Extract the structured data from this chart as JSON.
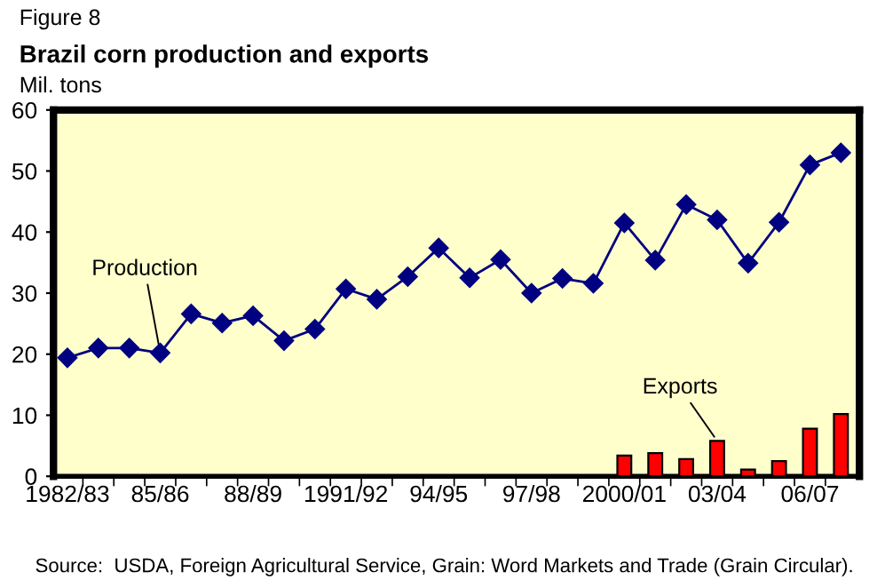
{
  "chart_data": {
    "type": "line",
    "title": "Brazil corn production and exports",
    "ylabel": "Mil. tons",
    "categories": [
      "1982/83",
      null,
      null,
      "85/86",
      null,
      null,
      "88/89",
      null,
      null,
      "1991/92",
      null,
      null,
      "94/95",
      null,
      null,
      "97/98",
      null,
      null,
      "2000/01",
      null,
      null,
      "03/04",
      null,
      null,
      "06/07",
      null
    ],
    "series": [
      {
        "name": "Exports",
        "type": "bar",
        "color": "#ff0000",
        "values": [
          null,
          null,
          null,
          null,
          null,
          null,
          null,
          null,
          null,
          null,
          null,
          null,
          null,
          null,
          null,
          null,
          null,
          null,
          3.4,
          3.8,
          2.8,
          5.8,
          1.1,
          2.5,
          7.8,
          10.2
        ]
      },
      {
        "name": "Production",
        "color": "#000080",
        "marker": "diamond",
        "values": [
          19.4,
          21,
          21,
          20.2,
          26.6,
          25.1,
          26.3,
          22.2,
          24.1,
          30.7,
          29.0,
          32.7,
          37.4,
          32.5,
          35.5,
          30.0,
          32.4,
          31.6,
          41.5,
          35.4,
          44.5,
          42.0,
          34.9,
          41.6,
          51.0,
          53.0
        ]
      }
    ],
    "ylim": [
      0,
      60
    ],
    "yticks": [
      0,
      10,
      20,
      30,
      40,
      50,
      60
    ],
    "grid": false,
    "legend": false,
    "annotations": [
      "Figure 8",
      "Source:  USDA, Foreign Agricultural Service, Grain: Word Markets and Trade (Grain Circular)."
    ]
  }
}
